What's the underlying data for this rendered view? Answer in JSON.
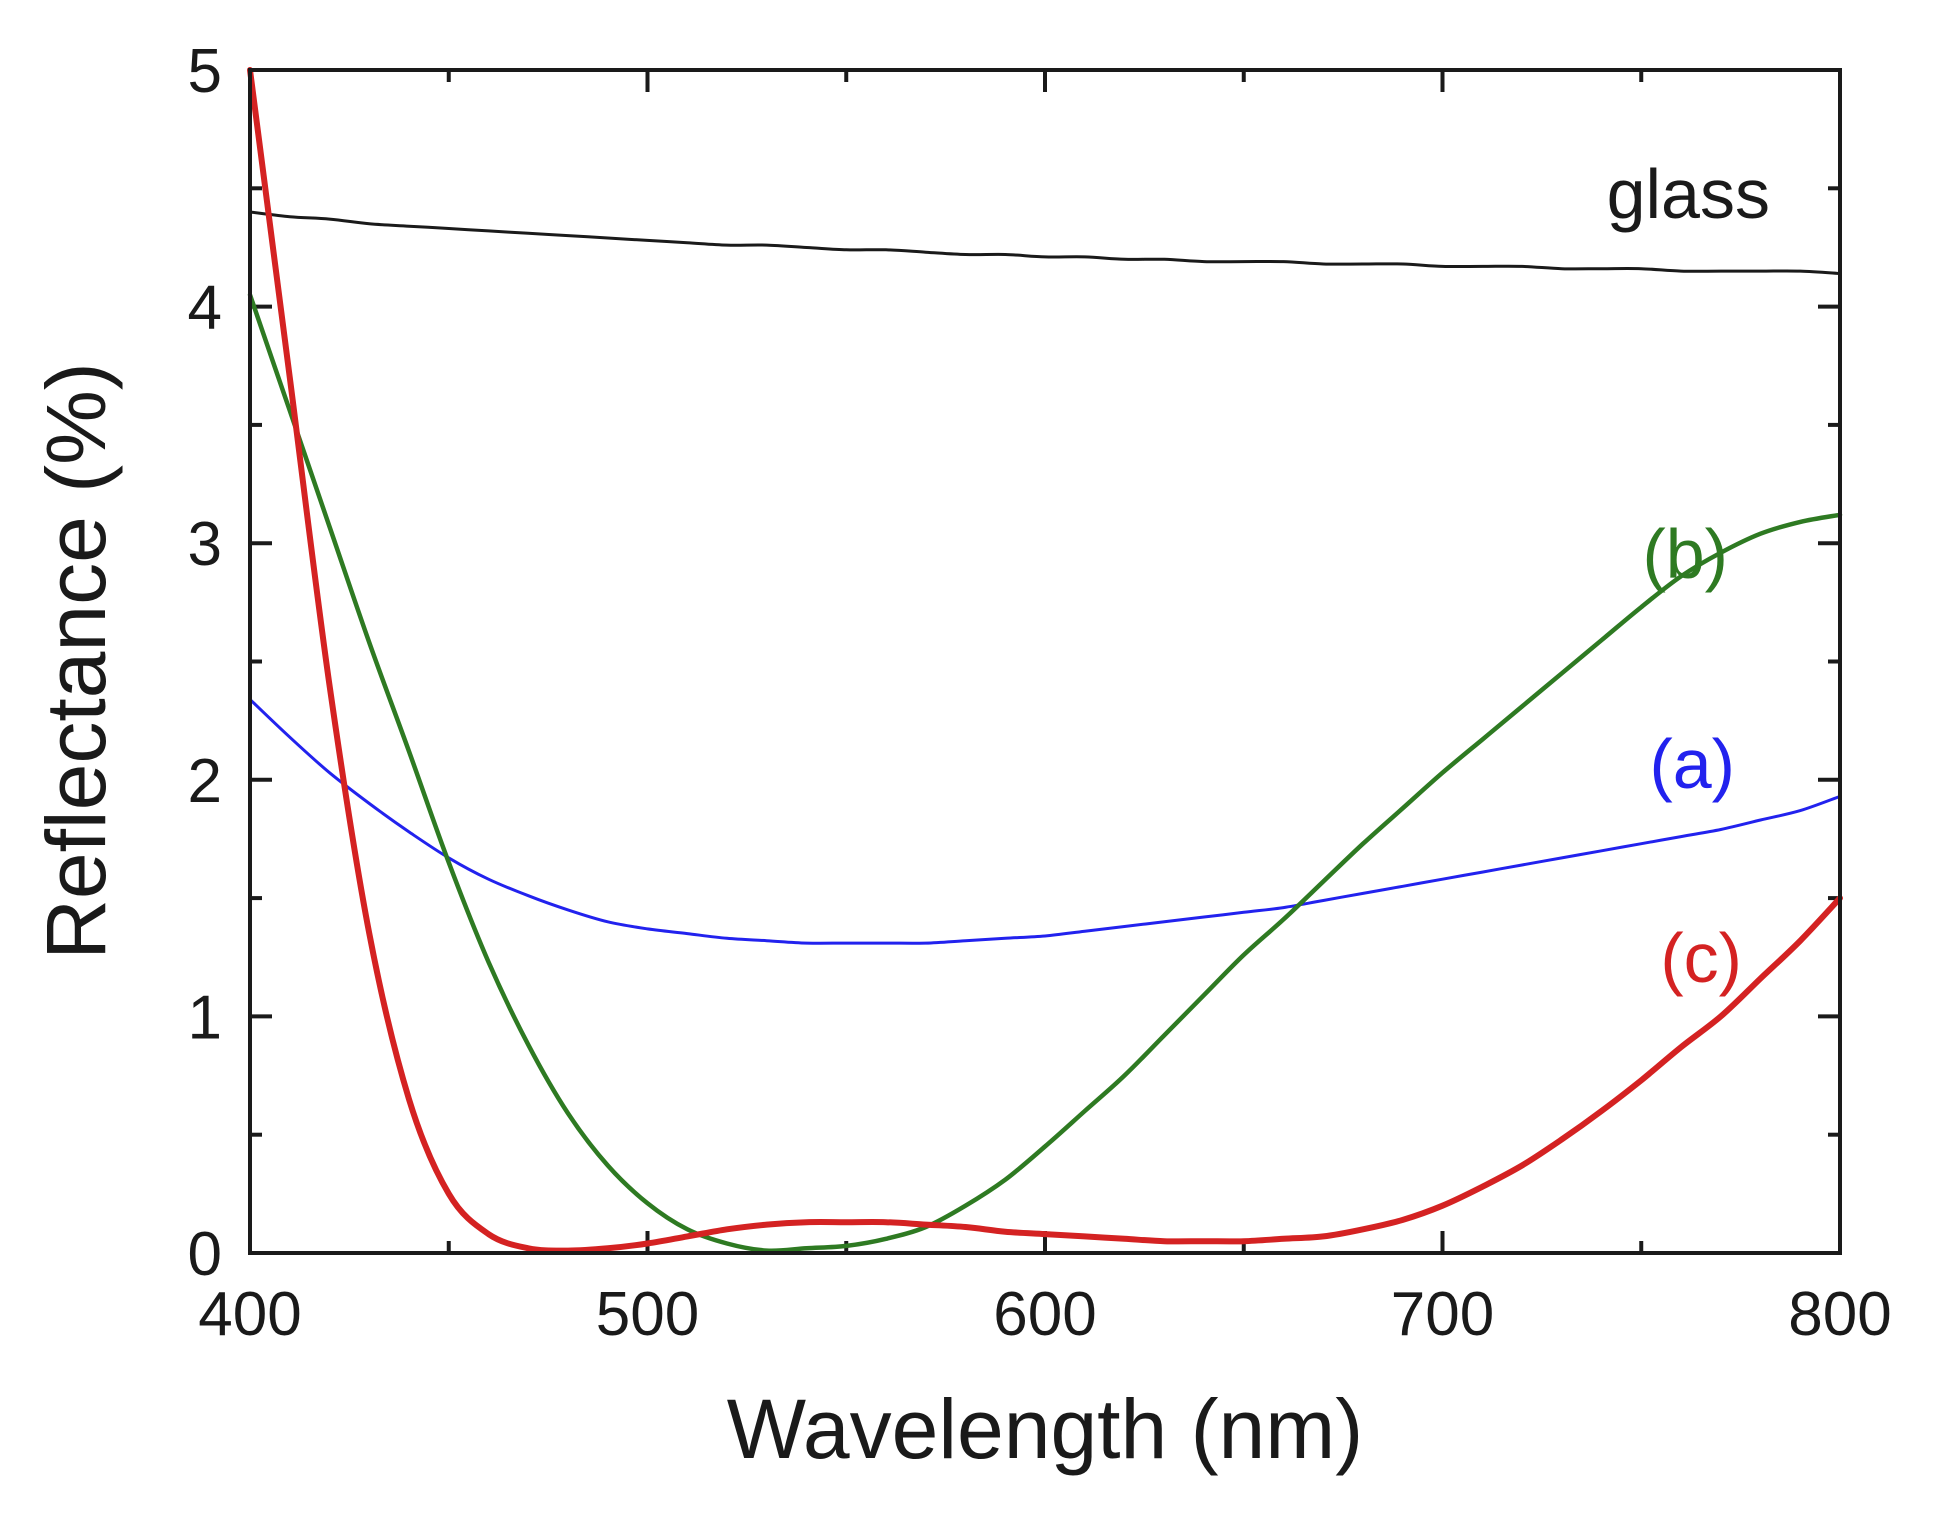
{
  "chart_data": {
    "type": "line",
    "xlabel": "Wavelength (nm)",
    "ylabel": "Reflectance (%)",
    "xlim": [
      400,
      800
    ],
    "ylim": [
      0,
      5
    ],
    "x_ticks": [
      400,
      500,
      600,
      700,
      800
    ],
    "y_ticks": [
      0,
      1,
      2,
      3,
      4,
      5
    ],
    "x_minor_step": 50,
    "y_minor_step": 0.5,
    "grid": false,
    "x": [
      400,
      410,
      420,
      430,
      440,
      450,
      460,
      470,
      480,
      490,
      500,
      510,
      520,
      530,
      540,
      550,
      560,
      570,
      580,
      590,
      600,
      610,
      620,
      630,
      640,
      650,
      660,
      670,
      680,
      690,
      700,
      710,
      720,
      730,
      740,
      750,
      760,
      770,
      780,
      790,
      800
    ],
    "series": [
      {
        "name": "glass",
        "label": "glass",
        "color": "#1a1a1a",
        "values": [
          4.4,
          4.38,
          4.37,
          4.35,
          4.34,
          4.33,
          4.32,
          4.31,
          4.3,
          4.29,
          4.28,
          4.27,
          4.26,
          4.26,
          4.25,
          4.24,
          4.24,
          4.23,
          4.22,
          4.22,
          4.21,
          4.21,
          4.2,
          4.2,
          4.19,
          4.19,
          4.19,
          4.18,
          4.18,
          4.18,
          4.17,
          4.17,
          4.17,
          4.16,
          4.16,
          4.16,
          4.15,
          4.15,
          4.15,
          4.15,
          4.14
        ]
      },
      {
        "name": "a",
        "label": "(a)",
        "color": "#2222ee",
        "values": [
          2.34,
          2.18,
          2.03,
          1.9,
          1.78,
          1.67,
          1.58,
          1.51,
          1.45,
          1.4,
          1.37,
          1.35,
          1.33,
          1.32,
          1.31,
          1.31,
          1.31,
          1.31,
          1.32,
          1.33,
          1.34,
          1.36,
          1.38,
          1.4,
          1.42,
          1.44,
          1.46,
          1.49,
          1.52,
          1.55,
          1.58,
          1.61,
          1.64,
          1.67,
          1.7,
          1.73,
          1.76,
          1.79,
          1.83,
          1.87,
          1.93
        ]
      },
      {
        "name": "b",
        "label": "(b)",
        "color": "#2e7a22",
        "values": [
          4.05,
          3.56,
          3.07,
          2.58,
          2.12,
          1.65,
          1.23,
          0.88,
          0.59,
          0.37,
          0.21,
          0.1,
          0.04,
          0.01,
          0.02,
          0.03,
          0.06,
          0.11,
          0.2,
          0.31,
          0.45,
          0.6,
          0.75,
          0.92,
          1.09,
          1.26,
          1.41,
          1.57,
          1.73,
          1.88,
          2.03,
          2.17,
          2.31,
          2.45,
          2.59,
          2.73,
          2.86,
          2.96,
          3.04,
          3.09,
          3.12
        ]
      },
      {
        "name": "c",
        "label": "(c)",
        "color": "#d42222",
        "values": [
          5.0,
          3.7,
          2.4,
          1.35,
          0.65,
          0.25,
          0.08,
          0.02,
          0.01,
          0.02,
          0.04,
          0.07,
          0.1,
          0.12,
          0.13,
          0.13,
          0.13,
          0.12,
          0.11,
          0.09,
          0.08,
          0.07,
          0.06,
          0.05,
          0.05,
          0.05,
          0.06,
          0.07,
          0.1,
          0.14,
          0.2,
          0.28,
          0.37,
          0.48,
          0.6,
          0.73,
          0.87,
          1.0,
          1.16,
          1.32,
          1.5
        ]
      }
    ]
  }
}
